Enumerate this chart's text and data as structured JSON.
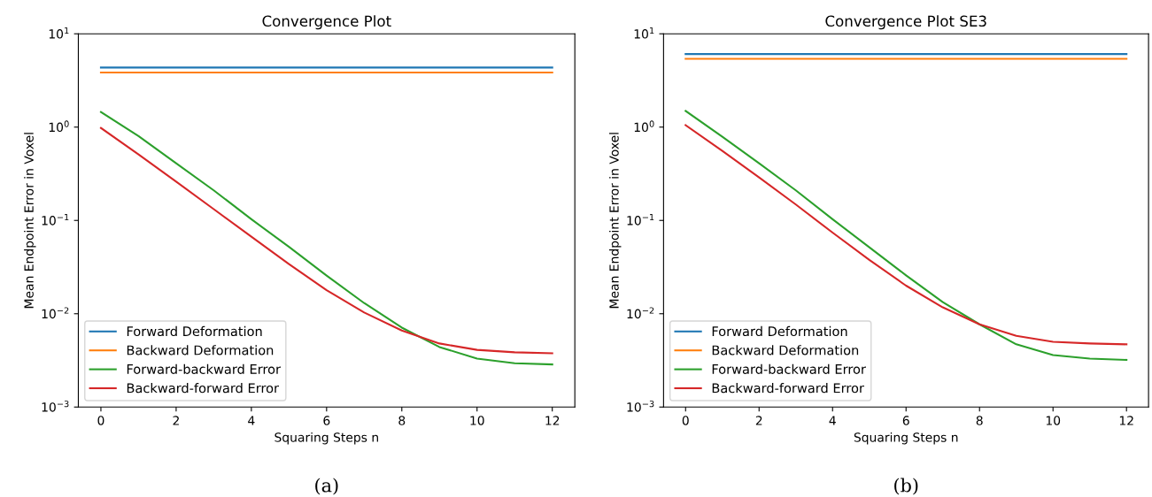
{
  "chart_data": [
    {
      "type": "line",
      "title": "Convergence Plot",
      "xlabel": "Squaring Steps n",
      "ylabel": "Mean Endpoint Error in Voxel",
      "log": "y",
      "legend": "bottom left",
      "grid": false,
      "x": [
        0,
        1,
        2,
        3,
        4,
        5,
        6,
        7,
        8,
        9,
        10,
        11,
        12
      ],
      "xlim": [
        -0.6,
        12.6
      ],
      "xticks": [
        0,
        2,
        4,
        6,
        8,
        10,
        12
      ],
      "ylim": [
        0.001,
        10
      ],
      "yticks": [
        {
          "value": 0.001,
          "label": "10$^{−3}$"
        },
        {
          "value": 0.01,
          "label": "10$^{−2}$"
        },
        {
          "value": 0.1,
          "label": "10$^{−1}$"
        },
        {
          "value": 1,
          "label": "10$^{0}$"
        },
        {
          "value": 10,
          "label": "10$^{1}$"
        }
      ],
      "annotations": [
        "(a)"
      ],
      "series": [
        {
          "name": "Forward Deformation",
          "color": "#1f77b4",
          "values": [
            4.35,
            4.35,
            4.35,
            4.35,
            4.35,
            4.35,
            4.35,
            4.35,
            4.35,
            4.35,
            4.35,
            4.35,
            4.35
          ]
        },
        {
          "name": "Backward Deformation",
          "color": "#ff7f0e",
          "values": [
            3.84,
            3.84,
            3.84,
            3.84,
            3.84,
            3.84,
            3.84,
            3.84,
            3.84,
            3.84,
            3.84,
            3.84,
            3.84
          ]
        },
        {
          "name": "Forward-backward Error",
          "color": "#2ca02c",
          "values": [
            1.45,
            0.8,
            0.41,
            0.21,
            0.103,
            0.052,
            0.0256,
            0.013,
            0.0071,
            0.0044,
            0.0033,
            0.00295,
            0.00286
          ]
        },
        {
          "name": "Backward-forward Error",
          "color": "#d62728",
          "values": [
            0.98,
            0.51,
            0.26,
            0.132,
            0.067,
            0.034,
            0.0179,
            0.0103,
            0.0066,
            0.0048,
            0.0041,
            0.00386,
            0.00377
          ]
        }
      ]
    },
    {
      "type": "line",
      "title": "Convergence Plot SE3",
      "xlabel": "Squaring Steps n",
      "ylabel": "Mean Endpoint Error in Voxel",
      "log": "y",
      "legend": "bottom left",
      "grid": false,
      "x": [
        0,
        1,
        2,
        3,
        4,
        5,
        6,
        7,
        8,
        9,
        10,
        11,
        12
      ],
      "xlim": [
        -0.6,
        12.6
      ],
      "xticks": [
        0,
        2,
        4,
        6,
        8,
        10,
        12
      ],
      "ylim": [
        0.001,
        10
      ],
      "yticks": [
        {
          "value": 0.001,
          "label": "10$^{−3}$"
        },
        {
          "value": 0.01,
          "label": "10$^{−2}$"
        },
        {
          "value": 0.1,
          "label": "10$^{−1}$"
        },
        {
          "value": 1,
          "label": "10$^{0}$"
        },
        {
          "value": 10,
          "label": "10$^{1}$"
        }
      ],
      "annotations": [
        "(b)"
      ],
      "series": [
        {
          "name": "Forward Deformation",
          "color": "#1f77b4",
          "values": [
            6.07,
            6.07,
            6.07,
            6.07,
            6.07,
            6.07,
            6.07,
            6.07,
            6.07,
            6.07,
            6.07,
            6.07,
            6.07
          ]
        },
        {
          "name": "Backward Deformation",
          "color": "#ff7f0e",
          "values": [
            5.4,
            5.4,
            5.4,
            5.4,
            5.4,
            5.4,
            5.4,
            5.4,
            5.4,
            5.4,
            5.4,
            5.4,
            5.4
          ]
        },
        {
          "name": "Forward-backward Error",
          "color": "#2ca02c",
          "values": [
            1.49,
            0.79,
            0.41,
            0.21,
            0.103,
            0.0516,
            0.0258,
            0.0133,
            0.0077,
            0.0047,
            0.0036,
            0.0033,
            0.0032
          ]
        },
        {
          "name": "Backward-forward Error",
          "color": "#d62728",
          "values": [
            1.05,
            0.556,
            0.289,
            0.148,
            0.074,
            0.0377,
            0.02,
            0.0117,
            0.0077,
            0.0058,
            0.005,
            0.0048,
            0.0047
          ]
        }
      ]
    }
  ]
}
